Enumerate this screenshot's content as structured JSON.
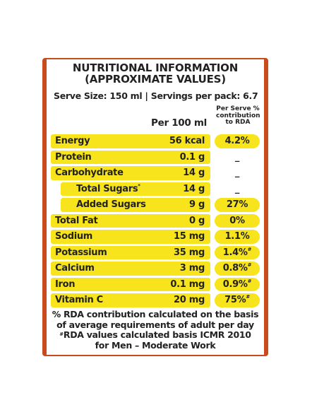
{
  "title_line1": "NUTRITIONAL INFORMATION",
  "title_line2": "(APPROXIMATE VALUES)",
  "serve_size": "Serve Size: 150 ml | Servings per pack: 6.7",
  "col_per100": "Per 100 ml",
  "col_perserve_1": "Per Serve %",
  "col_perserve_2": "contribution",
  "col_perserve_3": "to RDA",
  "rows": [
    {
      "name": "Energy",
      "value": "56 kcal",
      "pct": "4.2%",
      "pct_mark": ""
    },
    {
      "name": "Protein",
      "value": "0.1 g",
      "pct": "_",
      "pct_mark": ""
    },
    {
      "name": "Carbohydrate",
      "value": "14 g",
      "pct": "_",
      "pct_mark": ""
    },
    {
      "name": "Total Sugars",
      "name_mark": "*",
      "value": "14 g",
      "pct": "_",
      "pct_mark": ""
    },
    {
      "name": "Added Sugars",
      "value": "9 g",
      "pct": "27%",
      "pct_mark": ""
    },
    {
      "name": "Total Fat",
      "value": "0 g",
      "pct": "0%",
      "pct_mark": ""
    },
    {
      "name": "Sodium",
      "value": "15 mg",
      "pct": "1.1%",
      "pct_mark": ""
    },
    {
      "name": "Potassium",
      "value": "35 mg",
      "pct": "1.4%",
      "pct_mark": "#"
    },
    {
      "name": "Calcium",
      "value": "3 mg",
      "pct": "0.8%",
      "pct_mark": "#"
    },
    {
      "name": "Iron",
      "value": "0.1 mg",
      "pct": "0.9%",
      "pct_mark": "#"
    },
    {
      "name": "Vitamin C",
      "value": "20 mg",
      "pct": "75%",
      "pct_mark": "#"
    }
  ],
  "footer_line1": "% RDA contribution calculated on the basis",
  "footer_line2": "of average requirements of adult per day",
  "footer_line3_mark": "#",
  "footer_line3": "RDA values calculated basis ICMR 2010",
  "footer_line4": "for Men – Moderate Work",
  "colors": {
    "highlight": "#f7e41c",
    "border": "#c94a1a",
    "text": "#222222"
  }
}
